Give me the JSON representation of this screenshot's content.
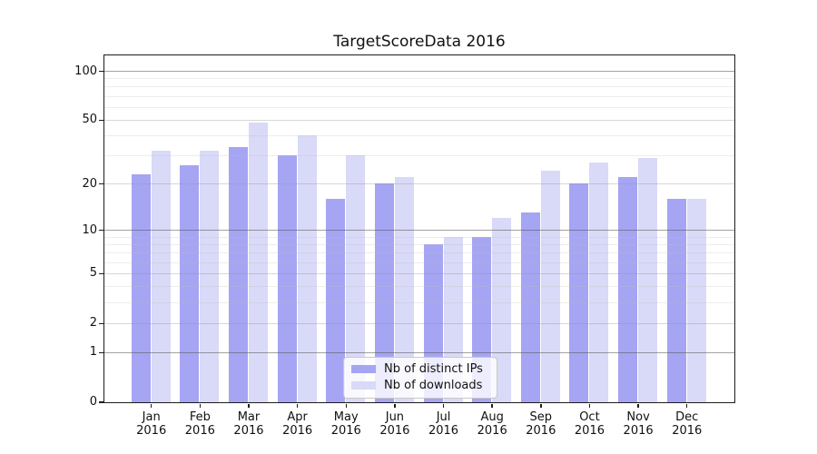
{
  "chart_data": {
    "type": "bar",
    "title": "TargetScoreData 2016",
    "categories": [
      "Jan",
      "Feb",
      "Mar",
      "Apr",
      "May",
      "Jun",
      "Jul",
      "Aug",
      "Sep",
      "Oct",
      "Nov",
      "Dec"
    ],
    "category_year": "2016",
    "series": [
      {
        "name": "Nb of distinct IPs",
        "color": "#a5a5f3",
        "values": [
          23,
          26,
          34,
          30,
          16,
          20,
          8,
          9,
          13,
          20,
          22,
          16
        ]
      },
      {
        "name": "Nb of downloads",
        "color": "#d9d9f8",
        "values": [
          32,
          32,
          48,
          40,
          30,
          22,
          9,
          12,
          24,
          27,
          29,
          16
        ]
      }
    ],
    "xlabel": "",
    "ylabel": "",
    "yscale": "log1p",
    "ylim": [
      0,
      126
    ],
    "yticks": [
      0,
      1,
      2,
      5,
      10,
      20,
      50,
      100
    ],
    "minor_yticks": [
      3,
      4,
      6,
      7,
      8,
      9,
      30,
      40,
      60,
      70,
      80,
      90
    ],
    "grid": true,
    "legend_position": "lower-center"
  }
}
